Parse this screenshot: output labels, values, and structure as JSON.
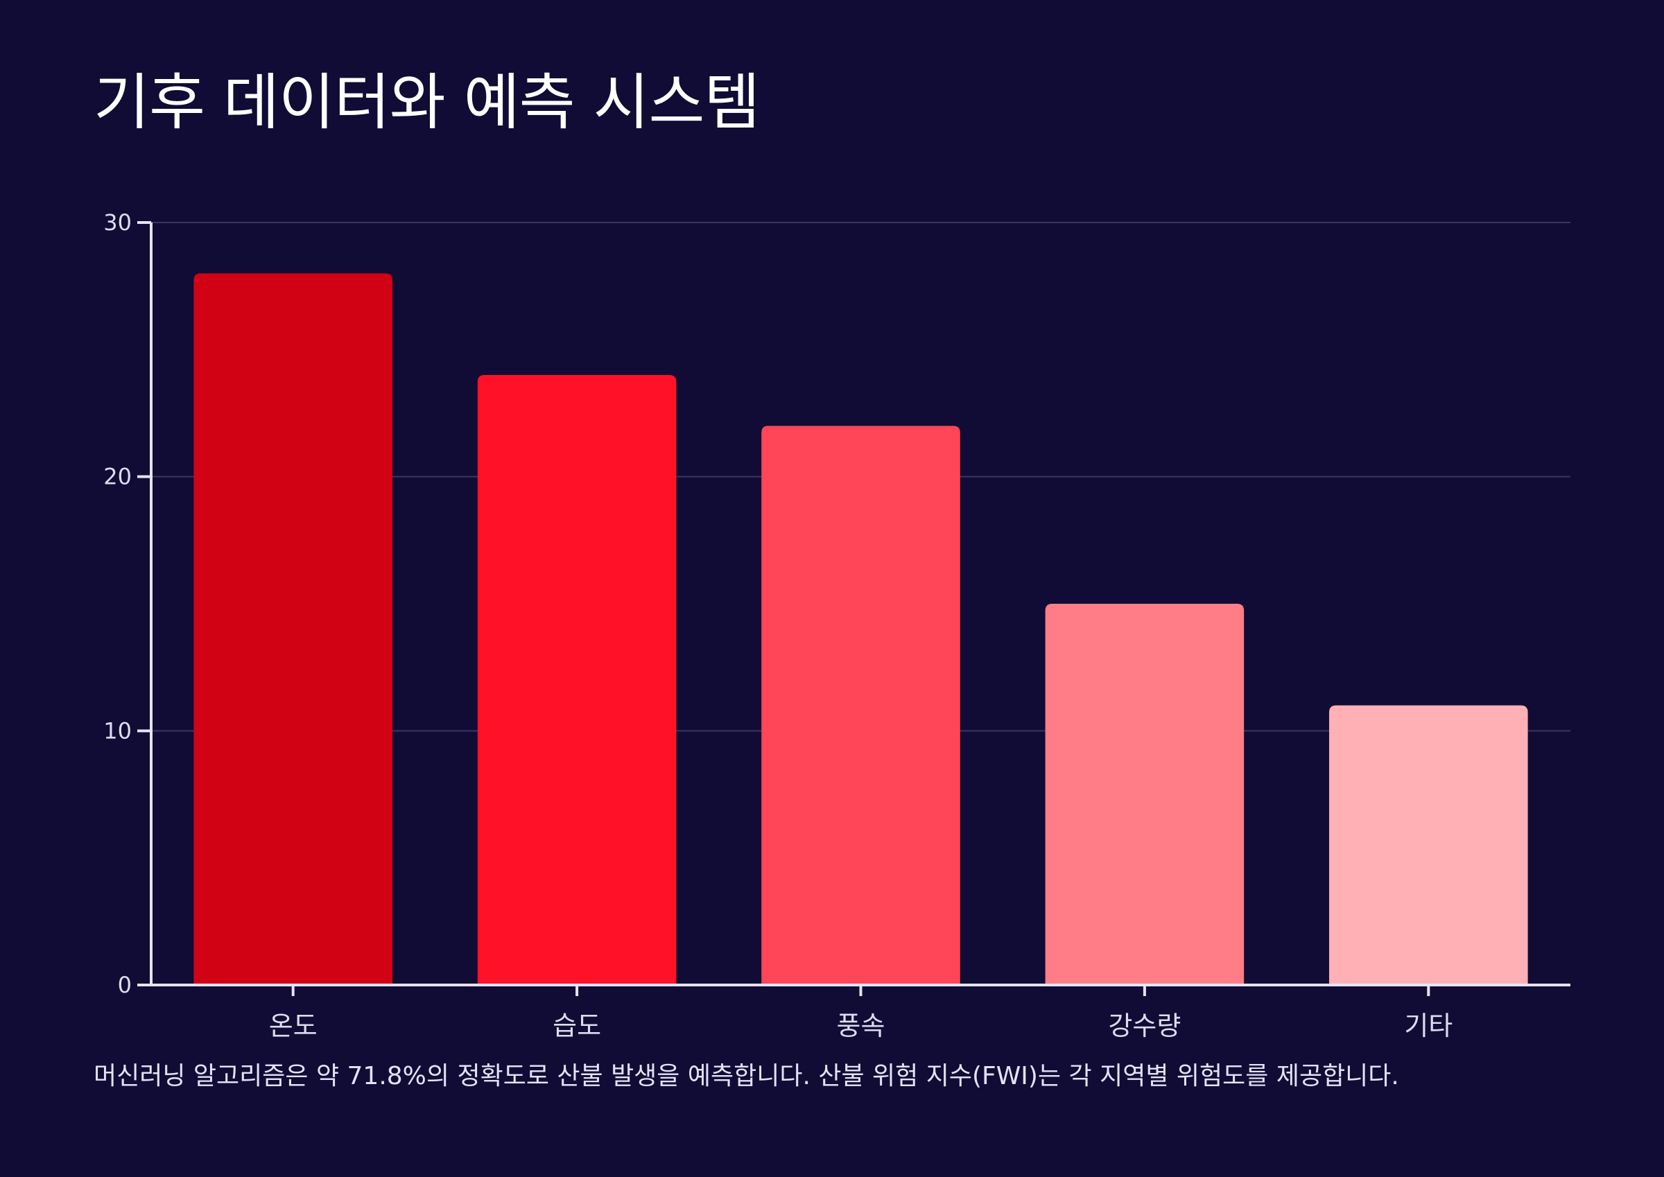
{
  "chart_data": {
    "type": "bar",
    "title": "기후 데이터와 예측 시스템",
    "categories": [
      "온도",
      "습도",
      "풍속",
      "강수량",
      "기타"
    ],
    "values": [
      28,
      24,
      22,
      15,
      11
    ],
    "colors": [
      "#d20215",
      "#ff1127",
      "#ff4558",
      "#ff7d87",
      "#ffb0b5"
    ],
    "ylim": [
      0,
      30
    ],
    "yticks": [
      0,
      10,
      20,
      30
    ],
    "ytick_labels": [
      "0",
      "10",
      "20",
      "30"
    ],
    "xlabel": "",
    "ylabel": "",
    "grid": true,
    "caption": "머신러닝 알고리즘은 약 71.8%의 정확도로 산불 발생을 예측합니다. 산불 위험 지수(FWI)는 각 지역별 위험도를 제공합니다."
  },
  "colors": {
    "background": "#100c35",
    "axis": "#e6e4f8",
    "grid": "#3b3762"
  }
}
